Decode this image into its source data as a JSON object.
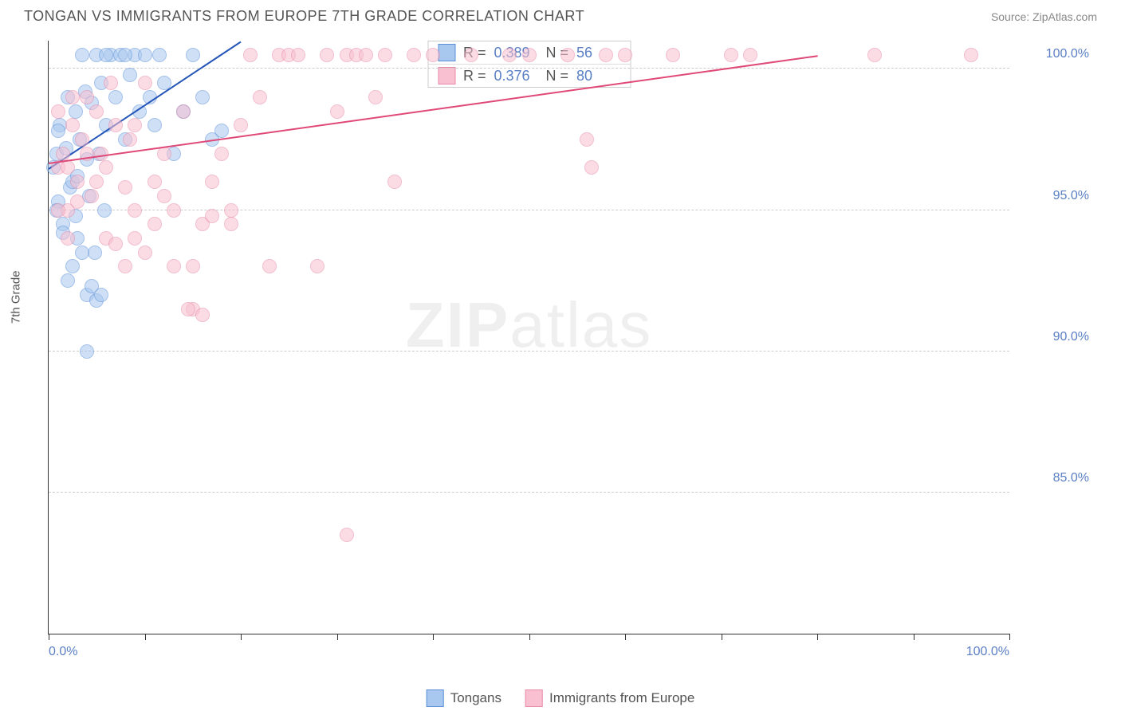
{
  "header": {
    "title": "TONGAN VS IMMIGRANTS FROM EUROPE 7TH GRADE CORRELATION CHART",
    "source": "Source: ZipAtlas.com"
  },
  "chart": {
    "type": "scatter",
    "y_axis_label": "7th Grade",
    "background_color": "#ffffff",
    "grid_color": "#cccccc",
    "axis_color": "#333333",
    "tick_label_color": "#5a7fc4",
    "xlim": [
      0,
      100
    ],
    "ylim": [
      80,
      101
    ],
    "x_ticks": [
      0,
      10,
      20,
      30,
      40,
      50,
      60,
      70,
      80,
      90,
      100
    ],
    "x_tick_labels": {
      "0": "0.0%",
      "100": "100.0%"
    },
    "y_ticks": [
      85,
      90,
      95,
      100
    ],
    "y_tick_labels": [
      "85.0%",
      "90.0%",
      "95.0%",
      "100.0%"
    ],
    "marker_size": 18,
    "marker_opacity": 0.55,
    "series": [
      {
        "name": "Tongans",
        "fill_color": "#a8c8f0",
        "stroke_color": "#5a8fd8",
        "line_color": "#2456b8",
        "R": "0.389",
        "N": "56",
        "trend": {
          "x1": 0,
          "y1": 96.5,
          "x2": 20,
          "y2": 101
        },
        "points": [
          [
            0.5,
            96.5
          ],
          [
            0.8,
            97.0
          ],
          [
            1.0,
            95.3
          ],
          [
            1.2,
            98.0
          ],
          [
            1.5,
            94.5
          ],
          [
            1.8,
            97.2
          ],
          [
            2.0,
            99.0
          ],
          [
            2.2,
            95.8
          ],
          [
            2.5,
            96.0
          ],
          [
            2.8,
            98.5
          ],
          [
            3.0,
            94.0
          ],
          [
            3.2,
            97.5
          ],
          [
            3.5,
            100.5
          ],
          [
            3.8,
            99.2
          ],
          [
            4.0,
            96.8
          ],
          [
            4.2,
            95.5
          ],
          [
            4.5,
            98.8
          ],
          [
            4.8,
            93.5
          ],
          [
            5.0,
            100.5
          ],
          [
            5.2,
            97.0
          ],
          [
            5.5,
            99.5
          ],
          [
            5.8,
            95.0
          ],
          [
            6.0,
            98.0
          ],
          [
            6.5,
            100.5
          ],
          [
            7.0,
            99.0
          ],
          [
            7.5,
            100.5
          ],
          [
            8.0,
            97.5
          ],
          [
            8.5,
            99.8
          ],
          [
            9.0,
            100.5
          ],
          [
            9.5,
            98.5
          ],
          [
            10.0,
            100.5
          ],
          [
            10.5,
            99.0
          ],
          [
            11.0,
            98.0
          ],
          [
            11.5,
            100.5
          ],
          [
            12.0,
            99.5
          ],
          [
            13.0,
            97.0
          ],
          [
            14.0,
            98.5
          ],
          [
            15.0,
            100.5
          ],
          [
            16.0,
            99.0
          ],
          [
            17.0,
            97.5
          ],
          [
            18.0,
            97.8
          ],
          [
            2.0,
            92.5
          ],
          [
            2.5,
            93.0
          ],
          [
            3.5,
            93.5
          ],
          [
            4.0,
            92.0
          ],
          [
            4.5,
            92.3
          ],
          [
            5.0,
            91.8
          ],
          [
            5.5,
            92.0
          ],
          [
            4.0,
            90.0
          ],
          [
            1.5,
            94.2
          ],
          [
            2.8,
            94.8
          ],
          [
            3.0,
            96.2
          ],
          [
            1.0,
            97.8
          ],
          [
            0.8,
            95.0
          ],
          [
            6.0,
            100.5
          ],
          [
            8.0,
            100.5
          ]
        ]
      },
      {
        "name": "Immigrants from Europe",
        "fill_color": "#f8c0d0",
        "stroke_color": "#e88aa8",
        "line_color": "#e04878",
        "R": "0.376",
        "N": "80",
        "trend": {
          "x1": 0,
          "y1": 96.7,
          "x2": 80,
          "y2": 100.5
        },
        "points": [
          [
            1.0,
            96.5
          ],
          [
            1.5,
            97.0
          ],
          [
            2.0,
            95.0
          ],
          [
            2.5,
            98.0
          ],
          [
            3.0,
            96.0
          ],
          [
            3.5,
            97.5
          ],
          [
            4.0,
            99.0
          ],
          [
            4.5,
            95.5
          ],
          [
            5.0,
            98.5
          ],
          [
            5.5,
            97.0
          ],
          [
            6.0,
            96.5
          ],
          [
            6.5,
            99.5
          ],
          [
            7.0,
            98.0
          ],
          [
            8.0,
            95.8
          ],
          [
            8.5,
            97.5
          ],
          [
            9.0,
            98.0
          ],
          [
            10.0,
            99.5
          ],
          [
            11.0,
            96.0
          ],
          [
            12.0,
            97.0
          ],
          [
            13.0,
            95.0
          ],
          [
            14.0,
            98.5
          ],
          [
            15.0,
            93.0
          ],
          [
            16.0,
            94.5
          ],
          [
            17.0,
            96.0
          ],
          [
            18.0,
            97.0
          ],
          [
            19.0,
            95.0
          ],
          [
            20.0,
            98.0
          ],
          [
            21.0,
            100.5
          ],
          [
            22.0,
            99.0
          ],
          [
            23.0,
            93.0
          ],
          [
            24.0,
            100.5
          ],
          [
            25.0,
            100.5
          ],
          [
            26.0,
            100.5
          ],
          [
            28.0,
            93.0
          ],
          [
            29.0,
            100.5
          ],
          [
            30.0,
            98.5
          ],
          [
            31.0,
            100.5
          ],
          [
            32.0,
            100.5
          ],
          [
            33.0,
            100.5
          ],
          [
            34.0,
            99.0
          ],
          [
            35.0,
            100.5
          ],
          [
            36.0,
            96.0
          ],
          [
            38.0,
            100.5
          ],
          [
            40.0,
            100.5
          ],
          [
            44.0,
            100.5
          ],
          [
            48.0,
            100.5
          ],
          [
            50.0,
            100.5
          ],
          [
            54.0,
            100.5
          ],
          [
            56.0,
            97.5
          ],
          [
            56.5,
            96.5
          ],
          [
            58.0,
            100.5
          ],
          [
            60.0,
            100.5
          ],
          [
            65.0,
            100.5
          ],
          [
            71.0,
            100.5
          ],
          [
            73.0,
            100.5
          ],
          [
            86.0,
            100.5
          ],
          [
            96.0,
            100.5
          ],
          [
            9.0,
            94.0
          ],
          [
            10.0,
            93.5
          ],
          [
            11.0,
            94.5
          ],
          [
            13.0,
            93.0
          ],
          [
            15.0,
            91.5
          ],
          [
            16.0,
            91.3
          ],
          [
            19.0,
            94.5
          ],
          [
            6.0,
            94.0
          ],
          [
            7.0,
            93.8
          ],
          [
            8.0,
            93.0
          ],
          [
            1.0,
            95.0
          ],
          [
            2.0,
            96.5
          ],
          [
            3.0,
            95.3
          ],
          [
            4.0,
            97.0
          ],
          [
            5.0,
            96.0
          ],
          [
            9.0,
            95.0
          ],
          [
            12.0,
            95.5
          ],
          [
            17.0,
            94.8
          ],
          [
            31.0,
            83.5
          ],
          [
            1.0,
            98.5
          ],
          [
            2.5,
            99.0
          ],
          [
            14.5,
            91.5
          ],
          [
            2.0,
            94.0
          ]
        ]
      }
    ],
    "legend": {
      "items": [
        {
          "label": "Tongans",
          "series_idx": 0
        },
        {
          "label": "Immigrants from Europe",
          "series_idx": 1
        }
      ]
    },
    "watermark": {
      "text_bold": "ZIP",
      "text_light": "atlas"
    }
  }
}
